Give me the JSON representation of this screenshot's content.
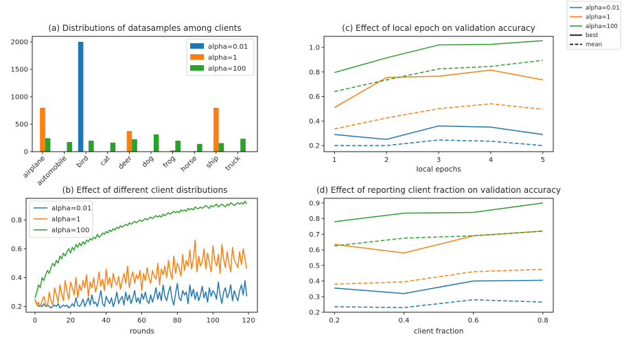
{
  "chart_data": [
    {
      "id": "a",
      "type": "bar",
      "title": "(a) Distributions of datasamples among clients",
      "xlabel": "",
      "ylabel": "",
      "ylim": [
        0,
        2100
      ],
      "yticks": [
        0,
        500,
        1000,
        1500,
        2000
      ],
      "categories": [
        "airplane",
        "automobile",
        "bird",
        "cat",
        "deer",
        "dog",
        "frog",
        "horse",
        "ship",
        "truck"
      ],
      "legend_position": "top-right",
      "series": [
        {
          "name": "alpha=0.01",
          "color": "#1f77b4",
          "values": [
            0,
            0,
            2000,
            0,
            0,
            0,
            0,
            0,
            0,
            0
          ]
        },
        {
          "name": "alpha=1",
          "color": "#ff7f0e",
          "values": [
            800,
            0,
            0,
            0,
            375,
            0,
            25,
            8,
            800,
            0
          ]
        },
        {
          "name": "alpha=100",
          "color": "#2ca02c",
          "values": [
            245,
            175,
            200,
            165,
            225,
            315,
            200,
            140,
            155,
            235
          ]
        }
      ]
    },
    {
      "id": "b",
      "type": "line",
      "title": "(b) Effect of different client distributions",
      "xlabel": "rounds",
      "ylabel": "",
      "xlim": [
        -5,
        125
      ],
      "ylim": [
        0.16,
        0.95
      ],
      "xticks": [
        0,
        20,
        40,
        60,
        80,
        100,
        120
      ],
      "yticks": [
        0.2,
        0.4,
        0.6,
        0.8
      ],
      "legend_position": "top-left",
      "series": [
        {
          "name": "alpha=0.01",
          "color": "#1f77b4",
          "values": [
            0.24,
            0.22,
            0.2,
            0.21,
            0.2,
            0.22,
            0.2,
            0.21,
            0.2,
            0.19,
            0.2,
            0.21,
            0.2,
            0.22,
            0.19,
            0.2,
            0.21,
            0.2,
            0.21,
            0.19,
            0.2,
            0.22,
            0.2,
            0.26,
            0.21,
            0.2,
            0.22,
            0.25,
            0.2,
            0.23,
            0.26,
            0.21,
            0.28,
            0.22,
            0.23,
            0.2,
            0.25,
            0.31,
            0.22,
            0.2,
            0.27,
            0.24,
            0.22,
            0.26,
            0.2,
            0.24,
            0.3,
            0.22,
            0.25,
            0.27,
            0.21,
            0.3,
            0.24,
            0.28,
            0.22,
            0.26,
            0.31,
            0.23,
            0.26,
            0.22,
            0.29,
            0.25,
            0.3,
            0.24,
            0.22,
            0.28,
            0.23,
            0.27,
            0.33,
            0.25,
            0.3,
            0.24,
            0.35,
            0.27,
            0.24,
            0.3,
            0.34,
            0.25,
            0.21,
            0.29,
            0.36,
            0.26,
            0.24,
            0.31,
            0.28,
            0.3,
            0.22,
            0.35,
            0.27,
            0.32,
            0.25,
            0.3,
            0.24,
            0.28,
            0.34,
            0.26,
            0.3,
            0.23,
            0.33,
            0.27,
            0.31,
            0.29,
            0.25,
            0.37,
            0.28,
            0.22,
            0.3,
            0.33,
            0.26,
            0.29,
            0.35,
            0.24,
            0.31,
            0.27,
            0.24,
            0.31,
            0.35,
            0.28,
            0.38,
            0.27
          ]
        },
        {
          "name": "alpha=1",
          "color": "#ff7f0e",
          "values": [
            0.25,
            0.21,
            0.23,
            0.2,
            0.24,
            0.27,
            0.22,
            0.2,
            0.3,
            0.24,
            0.21,
            0.33,
            0.28,
            0.23,
            0.35,
            0.29,
            0.24,
            0.38,
            0.3,
            0.25,
            0.37,
            0.33,
            0.28,
            0.4,
            0.26,
            0.35,
            0.31,
            0.38,
            0.33,
            0.42,
            0.27,
            0.37,
            0.33,
            0.4,
            0.3,
            0.35,
            0.44,
            0.34,
            0.39,
            0.31,
            0.46,
            0.35,
            0.4,
            0.33,
            0.43,
            0.37,
            0.35,
            0.41,
            0.32,
            0.38,
            0.43,
            0.36,
            0.48,
            0.33,
            0.4,
            0.44,
            0.36,
            0.42,
            0.39,
            0.45,
            0.31,
            0.43,
            0.38,
            0.47,
            0.4,
            0.36,
            0.45,
            0.41,
            0.39,
            0.5,
            0.35,
            0.46,
            0.42,
            0.48,
            0.4,
            0.52,
            0.44,
            0.39,
            0.55,
            0.43,
            0.5,
            0.47,
            0.41,
            0.56,
            0.45,
            0.52,
            0.48,
            0.59,
            0.46,
            0.53,
            0.66,
            0.44,
            0.55,
            0.48,
            0.51,
            0.6,
            0.46,
            0.57,
            0.5,
            0.44,
            0.62,
            0.52,
            0.48,
            0.56,
            0.43,
            0.63,
            0.53,
            0.47,
            0.58,
            0.5,
            0.44,
            0.61,
            0.52,
            0.5,
            0.47,
            0.58,
            0.49,
            0.6,
            0.53,
            0.46
          ]
        },
        {
          "name": "alpha=100",
          "color": "#2ca02c",
          "values": [
            0.26,
            0.3,
            0.35,
            0.33,
            0.4,
            0.38,
            0.42,
            0.45,
            0.43,
            0.47,
            0.5,
            0.48,
            0.52,
            0.5,
            0.55,
            0.53,
            0.57,
            0.55,
            0.58,
            0.6,
            0.57,
            0.61,
            0.59,
            0.63,
            0.61,
            0.64,
            0.62,
            0.65,
            0.63,
            0.66,
            0.65,
            0.67,
            0.66,
            0.68,
            0.67,
            0.7,
            0.68,
            0.69,
            0.71,
            0.7,
            0.72,
            0.71,
            0.73,
            0.72,
            0.74,
            0.73,
            0.75,
            0.74,
            0.76,
            0.75,
            0.76,
            0.77,
            0.76,
            0.78,
            0.77,
            0.78,
            0.79,
            0.78,
            0.79,
            0.8,
            0.79,
            0.8,
            0.81,
            0.8,
            0.81,
            0.82,
            0.81,
            0.82,
            0.83,
            0.82,
            0.83,
            0.82,
            0.84,
            0.83,
            0.84,
            0.85,
            0.84,
            0.85,
            0.86,
            0.85,
            0.86,
            0.85,
            0.87,
            0.86,
            0.87,
            0.86,
            0.88,
            0.87,
            0.88,
            0.87,
            0.89,
            0.88,
            0.88,
            0.89,
            0.88,
            0.89,
            0.9,
            0.89,
            0.88,
            0.9,
            0.89,
            0.9,
            0.91,
            0.89,
            0.9,
            0.91,
            0.9,
            0.89,
            0.91,
            0.9,
            0.92,
            0.91,
            0.9,
            0.91,
            0.92,
            0.91,
            0.92,
            0.91,
            0.93,
            0.91
          ]
        }
      ]
    },
    {
      "id": "c",
      "type": "line",
      "title": "(c) Effect of local epoch on validation accuracy",
      "xlabel": "local epochs",
      "ylabel": "",
      "xlim": [
        0.8,
        5.2
      ],
      "ylim": [
        0.15,
        1.09
      ],
      "xticks": [
        1,
        2,
        3,
        4,
        5
      ],
      "yticks": [
        0.2,
        0.4,
        0.6,
        0.8,
        1.0
      ],
      "ytick_labels": [
        "0.2",
        "0.4",
        "0.6",
        "0.8",
        "1.0"
      ],
      "x": [
        1,
        2,
        3,
        4,
        5
      ],
      "series": [
        {
          "name": "alpha=0.01",
          "style": "best",
          "color": "#1f77b4",
          "values": [
            0.29,
            0.25,
            0.36,
            0.35,
            0.29
          ]
        },
        {
          "name": "alpha=0.01",
          "style": "mean",
          "color": "#1f77b4",
          "values": [
            0.2,
            0.2,
            0.245,
            0.235,
            0.2
          ]
        },
        {
          "name": "alpha=1",
          "style": "best",
          "color": "#ff7f0e",
          "values": [
            0.51,
            0.755,
            0.765,
            0.815,
            0.735
          ]
        },
        {
          "name": "alpha=1",
          "style": "mean",
          "color": "#ff7f0e",
          "values": [
            0.335,
            0.425,
            0.5,
            0.54,
            0.495
          ]
        },
        {
          "name": "alpha=100",
          "style": "best",
          "color": "#2ca02c",
          "values": [
            0.795,
            0.915,
            1.02,
            1.025,
            1.055
          ]
        },
        {
          "name": "alpha=100",
          "style": "mean",
          "color": "#2ca02c",
          "values": [
            0.64,
            0.735,
            0.825,
            0.845,
            0.895
          ]
        }
      ]
    },
    {
      "id": "d",
      "type": "line",
      "title": "(d) Effect of reporting client fraction on validation accuracy",
      "xlabel": "client fraction",
      "ylabel": "",
      "xlim": [
        0.17,
        0.83
      ],
      "ylim": [
        0.2,
        0.93
      ],
      "xticks": [
        0.2,
        0.4,
        0.6,
        0.8
      ],
      "yticks": [
        0.2,
        0.3,
        0.4,
        0.5,
        0.6,
        0.7,
        0.8,
        0.9
      ],
      "x": [
        0.2,
        0.4,
        0.6,
        0.8
      ],
      "series": [
        {
          "name": "alpha=0.01",
          "style": "best",
          "color": "#1f77b4",
          "values": [
            0.355,
            0.32,
            0.4,
            0.405
          ]
        },
        {
          "name": "alpha=0.01",
          "style": "mean",
          "color": "#1f77b4",
          "values": [
            0.235,
            0.23,
            0.28,
            0.265
          ]
        },
        {
          "name": "alpha=1",
          "style": "best",
          "color": "#ff7f0e",
          "values": [
            0.635,
            0.58,
            0.69,
            0.72
          ]
        },
        {
          "name": "alpha=1",
          "style": "mean",
          "color": "#ff7f0e",
          "values": [
            0.38,
            0.395,
            0.46,
            0.475
          ]
        },
        {
          "name": "alpha=100",
          "style": "best",
          "color": "#2ca02c",
          "values": [
            0.78,
            0.835,
            0.84,
            0.9
          ]
        },
        {
          "name": "alpha=100",
          "style": "mean",
          "color": "#2ca02c",
          "values": [
            0.625,
            0.675,
            0.69,
            0.72
          ]
        }
      ]
    }
  ],
  "figure_legend": {
    "position": "top-right",
    "entries": [
      {
        "label": "alpha=0.01",
        "color": "#1f77b4",
        "dash": "solid"
      },
      {
        "label": "alpha=1",
        "color": "#ff7f0e",
        "dash": "solid"
      },
      {
        "label": "alpha=100",
        "color": "#2ca02c",
        "dash": "solid"
      },
      {
        "label": "best",
        "color": "#000000",
        "dash": "solid"
      },
      {
        "label": "mean",
        "color": "#000000",
        "dash": "dashed"
      }
    ]
  }
}
